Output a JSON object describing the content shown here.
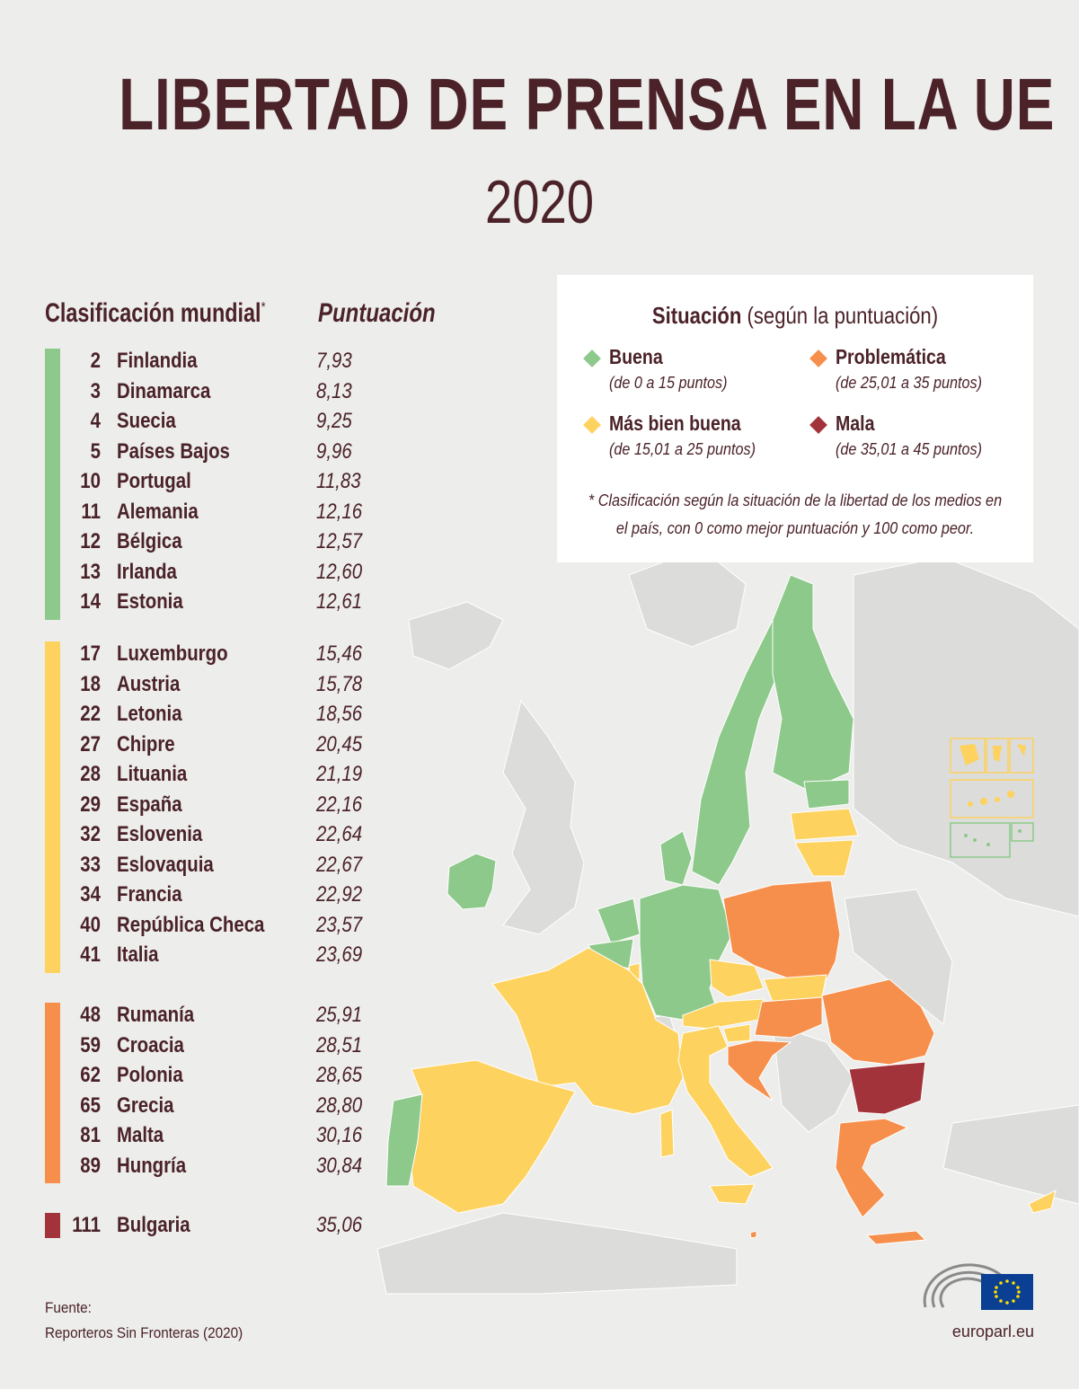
{
  "title": "LIBERTAD DE PRENSA EN LA UE",
  "year": "2020",
  "headers": {
    "rank": "Clasificación mundial",
    "rank_mark": "*",
    "score": "Puntuación"
  },
  "colors": {
    "good": "#8dc98a",
    "fairly_good": "#fdd25f",
    "problematic": "#f68f4b",
    "bad": "#a3333a",
    "text": "#4a2228",
    "nonEU": "#d8d8d7"
  },
  "groups": [
    {
      "status": "good",
      "rows": [
        {
          "rank": "2",
          "country": "Finlandia",
          "score": "7,93"
        },
        {
          "rank": "3",
          "country": "Dinamarca",
          "score": "8,13"
        },
        {
          "rank": "4",
          "country": "Suecia",
          "score": "9,25"
        },
        {
          "rank": "5",
          "country": "Países Bajos",
          "score": "9,96"
        },
        {
          "rank": "10",
          "country": "Portugal",
          "score": "11,83"
        },
        {
          "rank": "11",
          "country": "Alemania",
          "score": "12,16"
        },
        {
          "rank": "12",
          "country": "Bélgica",
          "score": "12,57"
        },
        {
          "rank": "13",
          "country": "Irlanda",
          "score": "12,60"
        },
        {
          "rank": "14",
          "country": "Estonia",
          "score": "12,61"
        }
      ]
    },
    {
      "status": "fairly_good",
      "rows": [
        {
          "rank": "17",
          "country": "Luxemburgo",
          "score": "15,46"
        },
        {
          "rank": "18",
          "country": "Austria",
          "score": "15,78"
        },
        {
          "rank": "22",
          "country": "Letonia",
          "score": "18,56"
        },
        {
          "rank": "27",
          "country": "Chipre",
          "score": "20,45"
        },
        {
          "rank": "28",
          "country": "Lituania",
          "score": "21,19"
        },
        {
          "rank": "29",
          "country": "España",
          "score": "22,16"
        },
        {
          "rank": "32",
          "country": "Eslovenia",
          "score": "22,64"
        },
        {
          "rank": "33",
          "country": "Eslovaquia",
          "score": "22,67"
        },
        {
          "rank": "34",
          "country": "Francia",
          "score": "22,92"
        },
        {
          "rank": "40",
          "country": "República Checa",
          "score": "23,57"
        },
        {
          "rank": "41",
          "country": "Italia",
          "score": "23,69"
        }
      ]
    },
    {
      "status": "problematic",
      "rows": [
        {
          "rank": "48",
          "country": "Rumanía",
          "score": "25,91"
        },
        {
          "rank": "59",
          "country": "Croacia",
          "score": "28,51"
        },
        {
          "rank": "62",
          "country": "Polonia",
          "score": "28,65"
        },
        {
          "rank": "65",
          "country": "Grecia",
          "score": "28,80"
        },
        {
          "rank": "81",
          "country": "Malta",
          "score": "30,16"
        },
        {
          "rank": "89",
          "country": "Hungría",
          "score": "30,84"
        }
      ]
    },
    {
      "status": "bad",
      "rows": [
        {
          "rank": "111",
          "country": "Bulgaria",
          "score": "35,06"
        }
      ]
    }
  ],
  "legend": {
    "title_bold": "Situación",
    "title_rest": " (según la puntuación)",
    "items": [
      {
        "label": "Buena",
        "range": "(de 0 a 15 puntos)"
      },
      {
        "label": "Problemática",
        "range": "(de 25,01 a 35 puntos)"
      },
      {
        "label": "Más bien buena",
        "range": "(de 15,01 a 25 puntos)"
      },
      {
        "label": "Mala",
        "range": "(de 35,01 a 45 puntos)"
      }
    ],
    "note": "* Clasificación según la situación de la libertad de los medios en el país, con 0 como mejor puntuación y 100 como peor."
  },
  "source": {
    "label": "Fuente:",
    "text": "Reporteros Sin Fronteras (2020)"
  },
  "site": "europarl.eu",
  "icons": [
    "eu-flag-icon",
    "parliament-hemicycle-icon"
  ]
}
